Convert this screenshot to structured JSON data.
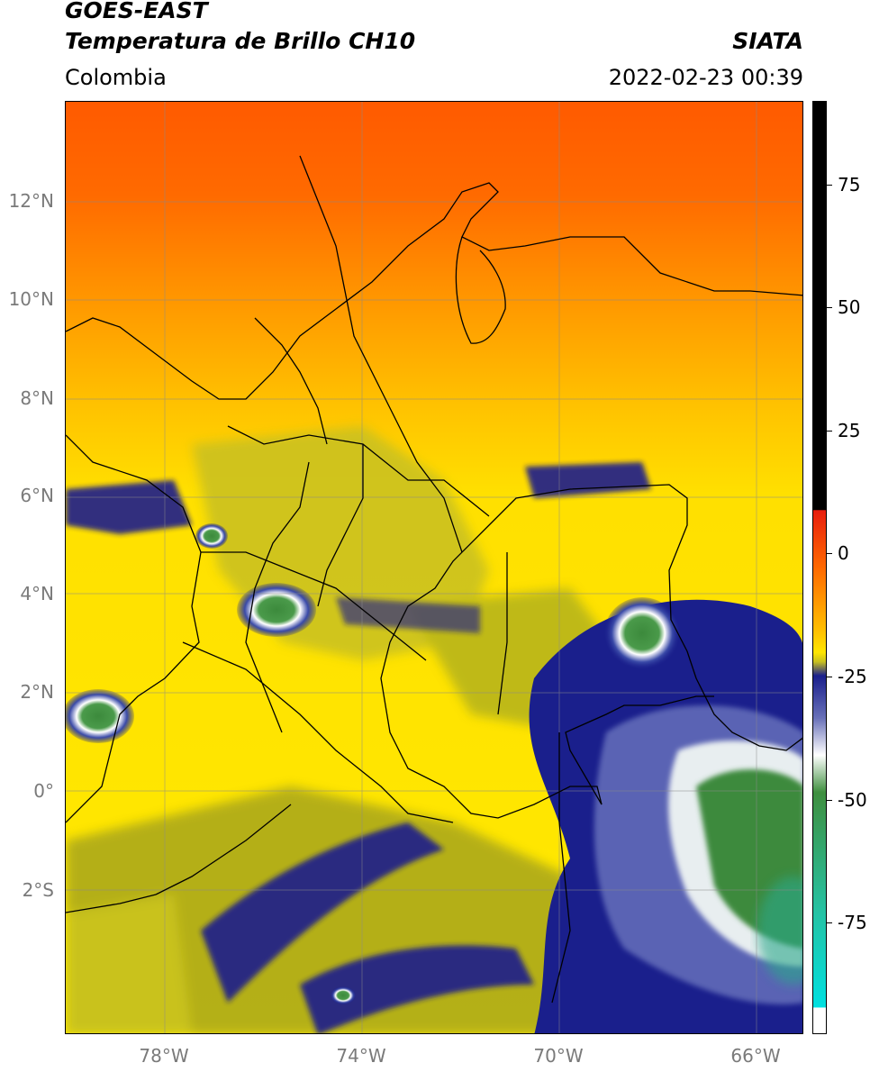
{
  "header": {
    "satellite": "GOES-EAST",
    "product": "Temperatura de Brillo CH10",
    "region": "Colombia",
    "source": "SIATA",
    "datetime": "2022-02-23 00:39"
  },
  "map": {
    "lat_labels": [
      "12°N",
      "10°N",
      "8°N",
      "6°N",
      "4°N",
      "2°N",
      "0°",
      "2°S"
    ],
    "lon_labels": [
      "78°W",
      "74°W",
      "70°W",
      "66°W"
    ]
  },
  "colorbar": {
    "labels": [
      "75",
      "50",
      "25",
      "0",
      "-25",
      "-50",
      "-75"
    ],
    "colors": {
      "black": "#000000",
      "red": "#e81e0e",
      "orange": "#ff8a00",
      "yellow": "#ffe600",
      "olive": "#a8a61a",
      "navy": "#1a1f8c",
      "white": "#ffffff",
      "green": "#3f8f3f",
      "teal": "#25c3a5",
      "cyan": "#00e0e0"
    }
  }
}
